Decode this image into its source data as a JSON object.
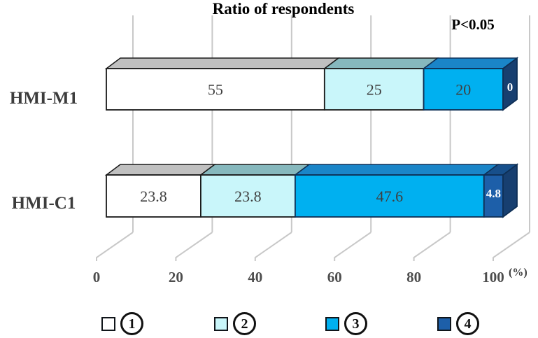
{
  "header": {
    "title": "Ratio of respondents",
    "annotation": "P<0.05"
  },
  "axis": {
    "unit_label": "(%)"
  },
  "chart_data": {
    "type": "bar",
    "stacked": true,
    "orientation": "horizontal",
    "style": "3d",
    "title": "Ratio of respondents",
    "annotation": "P<0.05",
    "categories": [
      "HMI-M1",
      "HMI-C1"
    ],
    "series": [
      {
        "name": "1",
        "color": "#ffffff",
        "top_color": "#c0c0c0",
        "edge": "#1a1a1a",
        "label_color": "#3f3f3f",
        "values": [
          55,
          23.8
        ]
      },
      {
        "name": "2",
        "color": "#c9f6fa",
        "top_color": "#86b8bd",
        "edge": "#1a1a1a",
        "label_color": "#3f3f3f",
        "values": [
          25,
          23.8
        ]
      },
      {
        "name": "3",
        "color": "#00b0f0",
        "top_color": "#1a85c8",
        "edge": "#0e2f55",
        "label_color": "#3f3f3f",
        "values": [
          20,
          47.6
        ]
      },
      {
        "name": "4",
        "color": "#1d5fa9",
        "top_color": "#174f8b",
        "edge": "#0e2f55",
        "label_color": "#ffffff",
        "values": [
          0,
          4.8
        ]
      }
    ],
    "side_face_color": "#173f70",
    "x_ticks": [
      "0",
      "20",
      "40",
      "60",
      "80",
      "100"
    ],
    "xlim": [
      0,
      100
    ],
    "grid": true,
    "gridline_color": "#c8c8c8",
    "legend_position": "bottom",
    "legend": [
      {
        "label": "1",
        "color": "#ffffff"
      },
      {
        "label": "2",
        "color": "#c9f6fa"
      },
      {
        "label": "3",
        "color": "#00b0f0"
      },
      {
        "label": "4",
        "color": "#1d5fa9"
      }
    ]
  }
}
